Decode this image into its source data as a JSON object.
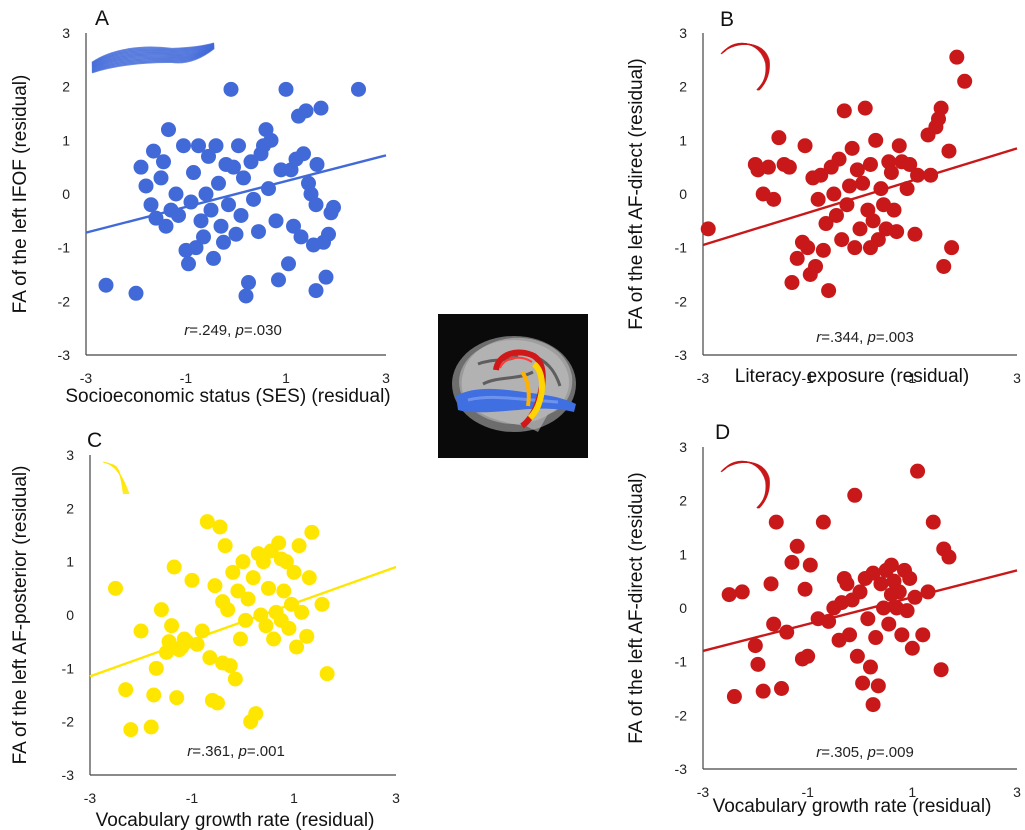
{
  "chart_data": [
    {
      "type": "scatter",
      "panel_label": "A",
      "xlabel": "Socioeconomic status (SES) (residual)",
      "ylabel": "FA of the left IFOF (residual)",
      "xlim": [
        -3,
        3
      ],
      "ylim": [
        -3,
        3
      ],
      "xticks": [
        "-3",
        "-1",
        "1",
        "3"
      ],
      "yticks": [
        "-3",
        "-2",
        "-1",
        "0",
        "1",
        "2",
        "3"
      ],
      "annotation": {
        "r_label": "r",
        "r_value": "=.249, ",
        "p_label": "p",
        "p_value": "=.030"
      },
      "color": "#4169d8",
      "trend": {
        "x": [
          -3,
          3
        ],
        "y": [
          -0.72,
          0.72
        ]
      },
      "tract": "ifof",
      "points": [
        [
          -2.6,
          -1.7
        ],
        [
          -2.0,
          -1.85
        ],
        [
          -1.9,
          0.5
        ],
        [
          -1.8,
          0.15
        ],
        [
          -1.7,
          -0.2
        ],
        [
          -1.65,
          0.8
        ],
        [
          -1.6,
          -0.45
        ],
        [
          -1.5,
          0.3
        ],
        [
          -1.45,
          0.6
        ],
        [
          -1.4,
          -0.6
        ],
        [
          -1.35,
          1.2
        ],
        [
          -1.3,
          -0.3
        ],
        [
          -1.2,
          0.0
        ],
        [
          -1.15,
          -0.4
        ],
        [
          -1.05,
          0.9
        ],
        [
          -1.0,
          -1.05
        ],
        [
          -0.95,
          -1.3
        ],
        [
          -0.9,
          -0.15
        ],
        [
          -0.85,
          0.4
        ],
        [
          -0.8,
          -1.0
        ],
        [
          -0.75,
          0.9
        ],
        [
          -0.7,
          -0.5
        ],
        [
          -0.65,
          -0.8
        ],
        [
          -0.6,
          0.0
        ],
        [
          -0.55,
          0.7
        ],
        [
          -0.5,
          -0.3
        ],
        [
          -0.45,
          -1.2
        ],
        [
          -0.4,
          0.9
        ],
        [
          -0.35,
          0.2
        ],
        [
          -0.3,
          -0.6
        ],
        [
          -0.25,
          -0.9
        ],
        [
          -0.2,
          0.55
        ],
        [
          -0.15,
          -0.2
        ],
        [
          -0.1,
          1.95
        ],
        [
          -0.05,
          0.5
        ],
        [
          0.0,
          -0.75
        ],
        [
          0.05,
          0.9
        ],
        [
          0.1,
          -0.4
        ],
        [
          0.15,
          0.3
        ],
        [
          0.2,
          -1.9
        ],
        [
          0.25,
          -1.65
        ],
        [
          0.3,
          0.6
        ],
        [
          0.35,
          -0.1
        ],
        [
          0.45,
          -0.7
        ],
        [
          0.5,
          0.75
        ],
        [
          0.55,
          0.9
        ],
        [
          0.6,
          1.2
        ],
        [
          0.65,
          0.1
        ],
        [
          0.7,
          1.0
        ],
        [
          0.8,
          -0.5
        ],
        [
          0.85,
          -1.6
        ],
        [
          0.9,
          0.45
        ],
        [
          1.0,
          1.95
        ],
        [
          1.05,
          -1.3
        ],
        [
          1.1,
          0.45
        ],
        [
          1.15,
          -0.6
        ],
        [
          1.2,
          0.65
        ],
        [
          1.25,
          1.45
        ],
        [
          1.3,
          -0.8
        ],
        [
          1.35,
          0.75
        ],
        [
          1.4,
          1.55
        ],
        [
          1.5,
          0.0
        ],
        [
          1.55,
          -0.95
        ],
        [
          1.6,
          -0.2
        ],
        [
          1.6,
          -1.8
        ],
        [
          1.62,
          0.55
        ],
        [
          1.7,
          1.6
        ],
        [
          1.75,
          -0.9
        ],
        [
          1.8,
          -1.55
        ],
        [
          1.85,
          -0.75
        ],
        [
          1.9,
          -0.35
        ],
        [
          1.95,
          -0.25
        ],
        [
          2.45,
          1.95
        ],
        [
          1.45,
          0.2
        ]
      ]
    },
    {
      "type": "scatter",
      "panel_label": "B",
      "xlabel": "Literacy exposure (residual)",
      "ylabel": "FA of the left AF-direct (residual)",
      "xlim": [
        -3,
        3
      ],
      "ylim": [
        -3,
        3
      ],
      "xticks": [
        "-3",
        "-1",
        "1",
        "3"
      ],
      "yticks": [
        "-3",
        "-2",
        "-1",
        "0",
        "1",
        "2",
        "3"
      ],
      "annotation": {
        "r_label": "r",
        "r_value": "=.344, ",
        "p_label": "p",
        "p_value": "=.003"
      },
      "color": "#c8181a",
      "trend": {
        "x": [
          -3,
          3
        ],
        "y": [
          -0.95,
          0.85
        ]
      },
      "tract": "af-direct",
      "points": [
        [
          -2.9,
          -0.65
        ],
        [
          -2.0,
          0.55
        ],
        [
          -1.95,
          0.45
        ],
        [
          -1.85,
          0.0
        ],
        [
          -1.75,
          0.5
        ],
        [
          -1.65,
          -0.1
        ],
        [
          -1.55,
          1.05
        ],
        [
          -1.45,
          0.55
        ],
        [
          -1.35,
          0.5
        ],
        [
          -1.3,
          -1.65
        ],
        [
          -1.2,
          -1.2
        ],
        [
          -1.1,
          -0.9
        ],
        [
          -1.05,
          0.9
        ],
        [
          -1.0,
          -1.0
        ],
        [
          -0.95,
          -1.5
        ],
        [
          -0.9,
          0.3
        ],
        [
          -0.85,
          -1.35
        ],
        [
          -0.8,
          -0.1
        ],
        [
          -0.75,
          0.35
        ],
        [
          -0.7,
          -1.05
        ],
        [
          -0.65,
          -0.55
        ],
        [
          -0.6,
          -1.8
        ],
        [
          -0.55,
          0.5
        ],
        [
          -0.5,
          0.0
        ],
        [
          -0.45,
          -0.4
        ],
        [
          -0.4,
          0.65
        ],
        [
          -0.35,
          -0.85
        ],
        [
          -0.3,
          1.55
        ],
        [
          -0.25,
          -0.2
        ],
        [
          -0.2,
          0.15
        ],
        [
          -0.15,
          0.85
        ],
        [
          -0.1,
          -1.0
        ],
        [
          -0.05,
          0.45
        ],
        [
          0.0,
          -0.65
        ],
        [
          0.05,
          0.2
        ],
        [
          0.1,
          1.6
        ],
        [
          0.15,
          -0.3
        ],
        [
          0.2,
          0.55
        ],
        [
          0.25,
          -0.5
        ],
        [
          0.3,
          1.0
        ],
        [
          0.35,
          -0.85
        ],
        [
          0.4,
          0.1
        ],
        [
          0.45,
          -0.2
        ],
        [
          0.5,
          -0.65
        ],
        [
          0.55,
          0.6
        ],
        [
          0.6,
          0.4
        ],
        [
          0.65,
          -0.3
        ],
        [
          0.7,
          -0.7
        ],
        [
          0.8,
          0.6
        ],
        [
          0.9,
          0.1
        ],
        [
          0.95,
          0.55
        ],
        [
          1.05,
          -0.75
        ],
        [
          1.1,
          0.35
        ],
        [
          1.3,
          1.1
        ],
        [
          1.35,
          0.35
        ],
        [
          1.45,
          1.25
        ],
        [
          1.55,
          1.6
        ],
        [
          1.6,
          -1.35
        ],
        [
          1.7,
          0.8
        ],
        [
          1.75,
          -1.0
        ],
        [
          1.85,
          2.55
        ],
        [
          2.0,
          2.1
        ],
        [
          1.5,
          1.4
        ],
        [
          0.75,
          0.9
        ],
        [
          0.2,
          -1.0
        ]
      ]
    },
    {
      "type": "scatter",
      "panel_label": "C",
      "xlabel": "Vocabulary growth rate (residual)",
      "ylabel": "FA of the left AF-posterior (residual)",
      "xlim": [
        -3,
        3
      ],
      "ylim": [
        -3,
        3
      ],
      "xticks": [
        "-3",
        "-1",
        "1",
        "3"
      ],
      "yticks": [
        "-3",
        "-2",
        "-1",
        "0",
        "1",
        "2",
        "3"
      ],
      "annotation": {
        "r_label": "r",
        "r_value": "=.361, ",
        "p_label": "p",
        "p_value": "=.001"
      },
      "color": "#ffe600",
      "trend": {
        "x": [
          -3,
          3
        ],
        "y": [
          -1.15,
          0.9
        ]
      },
      "tract": "af-posterior",
      "points": [
        [
          -2.5,
          0.5
        ],
        [
          -2.3,
          -1.4
        ],
        [
          -2.2,
          -2.15
        ],
        [
          -2.0,
          -0.3
        ],
        [
          -1.8,
          -2.1
        ],
        [
          -1.75,
          -1.5
        ],
        [
          -1.7,
          -1.0
        ],
        [
          -1.6,
          0.1
        ],
        [
          -1.5,
          -0.7
        ],
        [
          -1.45,
          -0.5
        ],
        [
          -1.4,
          -0.2
        ],
        [
          -1.35,
          0.9
        ],
        [
          -1.3,
          -1.55
        ],
        [
          -1.25,
          -0.65
        ],
        [
          -1.2,
          -0.6
        ],
        [
          -1.15,
          -0.45
        ],
        [
          -1.1,
          -0.5
        ],
        [
          -1.0,
          0.65
        ],
        [
          -0.9,
          -0.55
        ],
        [
          -0.8,
          -0.3
        ],
        [
          -0.7,
          1.75
        ],
        [
          -0.65,
          -0.8
        ],
        [
          -0.6,
          -1.6
        ],
        [
          -0.55,
          0.55
        ],
        [
          -0.5,
          -1.65
        ],
        [
          -0.45,
          1.65
        ],
        [
          -0.4,
          0.25
        ],
        [
          -0.35,
          1.3
        ],
        [
          -0.3,
          0.1
        ],
        [
          -0.25,
          -0.95
        ],
        [
          -0.2,
          0.8
        ],
        [
          -0.15,
          -1.2
        ],
        [
          -0.1,
          0.45
        ],
        [
          -0.05,
          -0.45
        ],
        [
          0.0,
          1.0
        ],
        [
          0.05,
          -0.1
        ],
        [
          0.1,
          0.3
        ],
        [
          0.15,
          -2.0
        ],
        [
          0.2,
          0.7
        ],
        [
          0.25,
          -1.85
        ],
        [
          0.3,
          1.15
        ],
        [
          0.35,
          0.0
        ],
        [
          0.4,
          1.0
        ],
        [
          0.45,
          -0.2
        ],
        [
          0.5,
          0.5
        ],
        [
          0.55,
          1.2
        ],
        [
          0.6,
          -0.45
        ],
        [
          0.65,
          0.05
        ],
        [
          0.7,
          1.35
        ],
        [
          0.75,
          -0.1
        ],
        [
          0.8,
          0.45
        ],
        [
          0.85,
          1.0
        ],
        [
          0.9,
          -0.25
        ],
        [
          0.95,
          0.2
        ],
        [
          1.0,
          0.8
        ],
        [
          1.05,
          -0.6
        ],
        [
          1.1,
          1.3
        ],
        [
          1.15,
          0.05
        ],
        [
          1.25,
          -0.4
        ],
        [
          1.3,
          0.7
        ],
        [
          1.35,
          1.55
        ],
        [
          1.55,
          0.2
        ],
        [
          1.65,
          -1.1
        ],
        [
          0.75,
          1.05
        ],
        [
          -0.4,
          -0.9
        ]
      ]
    },
    {
      "type": "scatter",
      "panel_label": "D",
      "xlabel": "Vocabulary growth rate (residual)",
      "ylabel": "FA of the left AF-direct (residual)",
      "xlim": [
        -3,
        3
      ],
      "ylim": [
        -3,
        3
      ],
      "xticks": [
        "-3",
        "-1",
        "1",
        "3"
      ],
      "yticks": [
        "-3",
        "-2",
        "-1",
        "0",
        "1",
        "2",
        "3"
      ],
      "annotation": {
        "r_label": "r",
        "r_value": "=.305, ",
        "p_label": "p",
        "p_value": "=.009"
      },
      "color": "#c8181a",
      "trend": {
        "x": [
          -3,
          3
        ],
        "y": [
          -0.8,
          0.7
        ]
      },
      "tract": "af-direct",
      "points": [
        [
          -2.5,
          0.25
        ],
        [
          -2.4,
          -1.65
        ],
        [
          -2.25,
          0.3
        ],
        [
          -2.0,
          -0.7
        ],
        [
          -1.95,
          -1.05
        ],
        [
          -1.85,
          -1.55
        ],
        [
          -1.7,
          0.45
        ],
        [
          -1.65,
          -0.3
        ],
        [
          -1.6,
          1.6
        ],
        [
          -1.5,
          -1.5
        ],
        [
          -1.4,
          -0.45
        ],
        [
          -1.3,
          0.85
        ],
        [
          -1.2,
          1.15
        ],
        [
          -1.1,
          -0.95
        ],
        [
          -1.05,
          0.35
        ],
        [
          -1.0,
          -0.9
        ],
        [
          -0.95,
          0.8
        ],
        [
          -0.8,
          -0.2
        ],
        [
          -0.7,
          1.6
        ],
        [
          -0.6,
          -0.25
        ],
        [
          -0.5,
          0.0
        ],
        [
          -0.4,
          -0.6
        ],
        [
          -0.35,
          0.1
        ],
        [
          -0.25,
          0.45
        ],
        [
          -0.2,
          -0.5
        ],
        [
          -0.15,
          0.15
        ],
        [
          -0.1,
          2.1
        ],
        [
          -0.05,
          -0.9
        ],
        [
          0.0,
          0.3
        ],
        [
          0.05,
          -1.4
        ],
        [
          0.1,
          0.55
        ],
        [
          0.15,
          -0.2
        ],
        [
          0.2,
          -1.1
        ],
        [
          0.25,
          0.65
        ],
        [
          0.3,
          -0.55
        ],
        [
          0.35,
          -1.45
        ],
        [
          0.4,
          0.45
        ],
        [
          0.45,
          0.0
        ],
        [
          0.5,
          0.7
        ],
        [
          0.55,
          -0.3
        ],
        [
          0.6,
          0.8
        ],
        [
          0.65,
          0.5
        ],
        [
          0.7,
          0.0
        ],
        [
          0.75,
          0.3
        ],
        [
          0.8,
          -0.5
        ],
        [
          0.85,
          0.7
        ],
        [
          0.9,
          -0.05
        ],
        [
          0.95,
          0.55
        ],
        [
          1.0,
          -0.75
        ],
        [
          1.05,
          0.2
        ],
        [
          1.1,
          2.55
        ],
        [
          1.2,
          -0.5
        ],
        [
          1.3,
          0.3
        ],
        [
          1.4,
          1.6
        ],
        [
          1.55,
          -1.15
        ],
        [
          1.6,
          1.1
        ],
        [
          1.7,
          0.95
        ],
        [
          0.25,
          -1.8
        ],
        [
          -0.3,
          0.55
        ],
        [
          0.6,
          0.25
        ]
      ]
    }
  ]
}
